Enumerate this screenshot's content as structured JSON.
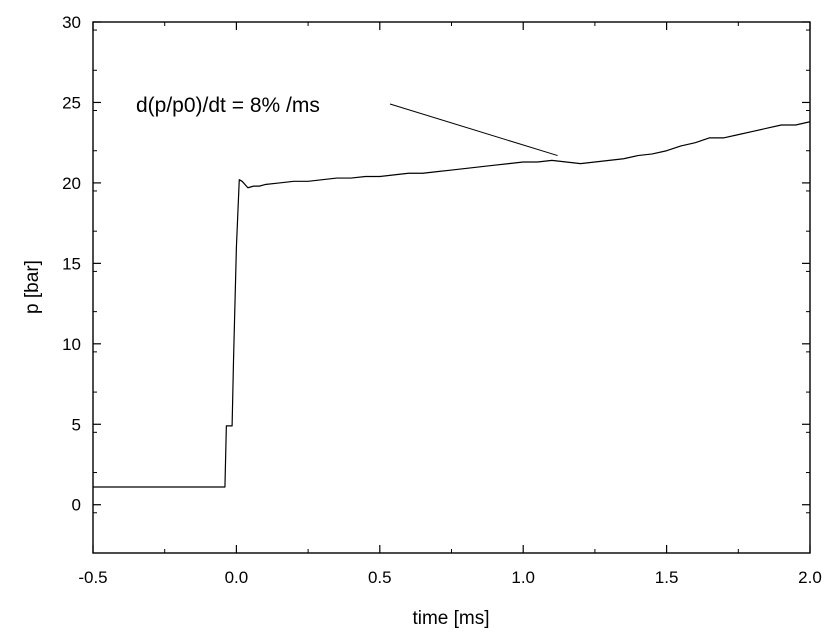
{
  "chart_data": {
    "type": "line",
    "xlabel": "time [ms]",
    "ylabel": "p [bar]",
    "xlim": [
      -0.5,
      2.0
    ],
    "ylim": [
      -3,
      30
    ],
    "xticks": [
      -0.5,
      0.0,
      0.5,
      1.0,
      1.5,
      2.0
    ],
    "xtick_labels": [
      "-0.5",
      "0.0",
      "0.5",
      "1.0",
      "1.5",
      "2.0"
    ],
    "yticks": [
      0,
      5,
      10,
      15,
      20,
      25,
      30
    ],
    "ytick_labels": [
      "0",
      "5",
      "10",
      "15",
      "20",
      "25",
      "30"
    ],
    "grid": false,
    "series": [
      {
        "x": [
          -0.5,
          -0.04,
          -0.035,
          -0.03,
          -0.015,
          -0.01,
          0.0,
          0.01,
          0.02,
          0.04,
          0.06,
          0.08,
          0.1,
          0.15,
          0.2,
          0.25,
          0.3,
          0.35,
          0.4,
          0.45,
          0.5,
          0.55,
          0.6,
          0.65,
          0.7,
          0.75,
          0.8,
          0.85,
          0.9,
          0.95,
          1.0,
          1.05,
          1.1,
          1.15,
          1.2,
          1.25,
          1.3,
          1.35,
          1.4,
          1.45,
          1.5,
          1.55,
          1.6,
          1.65,
          1.7,
          1.75,
          1.8,
          1.85,
          1.9,
          1.95,
          2.0
        ],
        "values": [
          1.1,
          1.1,
          4.9,
          4.9,
          4.9,
          9.0,
          16.0,
          20.2,
          20.1,
          19.7,
          19.8,
          19.8,
          19.9,
          20.0,
          20.1,
          20.1,
          20.2,
          20.3,
          20.3,
          20.4,
          20.4,
          20.5,
          20.6,
          20.6,
          20.7,
          20.8,
          20.9,
          21.0,
          21.1,
          21.2,
          21.3,
          21.3,
          21.4,
          21.3,
          21.2,
          21.3,
          21.4,
          21.5,
          21.7,
          21.8,
          22.0,
          22.3,
          22.5,
          22.8,
          22.8,
          23.0,
          23.2,
          23.4,
          23.6,
          23.6,
          23.8
        ]
      }
    ],
    "annotation": {
      "text": "d(p/p0)/dt = 8% /ms",
      "x": 1.12,
      "y": 21.7
    }
  }
}
